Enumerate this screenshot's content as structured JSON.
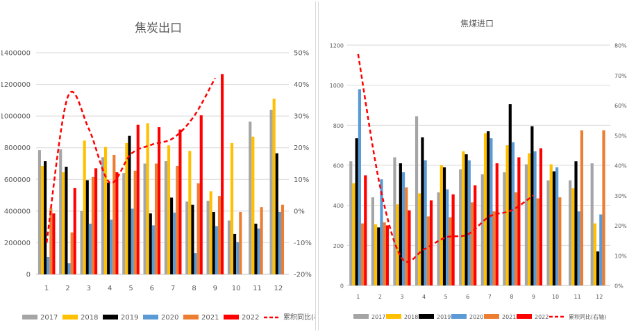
{
  "chart_data": [
    {
      "type": "bar",
      "title": "焦炭出口",
      "categories": [
        "1",
        "2",
        "3",
        "4",
        "5",
        "6",
        "7",
        "8",
        "9",
        "10",
        "11",
        "12"
      ],
      "ylim": [
        0,
        1400000
      ],
      "yticks": [
        "0",
        "200000",
        "400000",
        "600000",
        "800000",
        "1000000",
        "1200000",
        "1400000"
      ],
      "y2lim": [
        -20,
        50
      ],
      "y2ticks": [
        "-20%",
        "-10%",
        "0%",
        "10%",
        "20%",
        "30%",
        "40%",
        "50%"
      ],
      "grid": true,
      "legend_position": "bottom",
      "series": [
        {
          "name": "2017",
          "color": "#a5a5a5",
          "values": [
            785000,
            790000,
            400000,
            740000,
            640000,
            700000,
            715000,
            460000,
            465000,
            340000,
            965000,
            1040000
          ]
        },
        {
          "name": "2018",
          "color": "#ffc000",
          "values": [
            685000,
            645000,
            845000,
            805000,
            830000,
            955000,
            815000,
            780000,
            525000,
            830000,
            870000,
            1110000
          ]
        },
        {
          "name": "2019",
          "color": "#000000",
          "values": [
            715000,
            680000,
            595000,
            580000,
            875000,
            385000,
            485000,
            440000,
            395000,
            255000,
            320000,
            765000
          ]
        },
        {
          "name": "2020",
          "color": "#5b9bd5",
          "values": [
            110000,
            70000,
            320000,
            345000,
            415000,
            310000,
            390000,
            135000,
            305000,
            205000,
            290000,
            395000
          ]
        },
        {
          "name": "2021",
          "color": "#ed7d31",
          "values": [
            420000,
            265000,
            615000,
            755000,
            655000,
            700000,
            685000,
            575000,
            495000,
            395000,
            425000,
            440000
          ]
        },
        {
          "name": "2022",
          "color": "#ff0000",
          "values": [
            385000,
            545000,
            670000,
            645000,
            945000,
            930000,
            915000,
            1005000,
            1265000,
            null,
            null,
            null
          ]
        }
      ],
      "line": {
        "name": "累积同比(右轴)",
        "color": "#ff0000",
        "values": [
          -10,
          36,
          26,
          9,
          18,
          21,
          23,
          30,
          42
        ]
      }
    },
    {
      "type": "bar",
      "title": "焦煤进口",
      "categories": [
        "1",
        "2",
        "3",
        "4",
        "5",
        "6",
        "7",
        "8",
        "9",
        "10",
        "11",
        "12"
      ],
      "ylim": [
        0,
        1200
      ],
      "yticks": [
        "0",
        "200",
        "400",
        "600",
        "800",
        "1000",
        "1200"
      ],
      "y2lim": [
        0,
        80
      ],
      "y2ticks": [
        "0%",
        "10%",
        "20%",
        "30%",
        "40%",
        "50%",
        "60%",
        "70%",
        "80%"
      ],
      "grid": true,
      "legend_position": "bottom",
      "series": [
        {
          "name": "2017",
          "color": "#a5a5a5",
          "values": [
            620,
            440,
            640,
            845,
            465,
            580,
            555,
            565,
            605,
            525,
            525,
            610
          ]
        },
        {
          "name": "2018",
          "color": "#ffc000",
          "values": [
            510,
            305,
            405,
            460,
            600,
            670,
            760,
            700,
            660,
            605,
            485,
            310
          ]
        },
        {
          "name": "2019",
          "color": "#000000",
          "values": [
            735,
            290,
            610,
            740,
            590,
            655,
            770,
            905,
            795,
            570,
            620,
            170
          ]
        },
        {
          "name": "2020",
          "color": "#5b9bd5",
          "values": [
            980,
            530,
            565,
            625,
            480,
            625,
            735,
            715,
            670,
            590,
            370,
            355
          ]
        },
        {
          "name": "2021",
          "color": "#ed7d31",
          "values": [
            310,
            315,
            490,
            345,
            340,
            415,
            370,
            465,
            435,
            440,
            775,
            775
          ]
        },
        {
          "name": "2022",
          "color": "#ff0000",
          "values": [
            550,
            300,
            375,
            425,
            455,
            500,
            610,
            640,
            685,
            null,
            null,
            null
          ]
        }
      ],
      "line": {
        "name": "累积同比(右轴)",
        "color": "#ff0000",
        "values": [
          77,
          33,
          9,
          12,
          16,
          17,
          23,
          25,
          30
        ]
      }
    }
  ]
}
